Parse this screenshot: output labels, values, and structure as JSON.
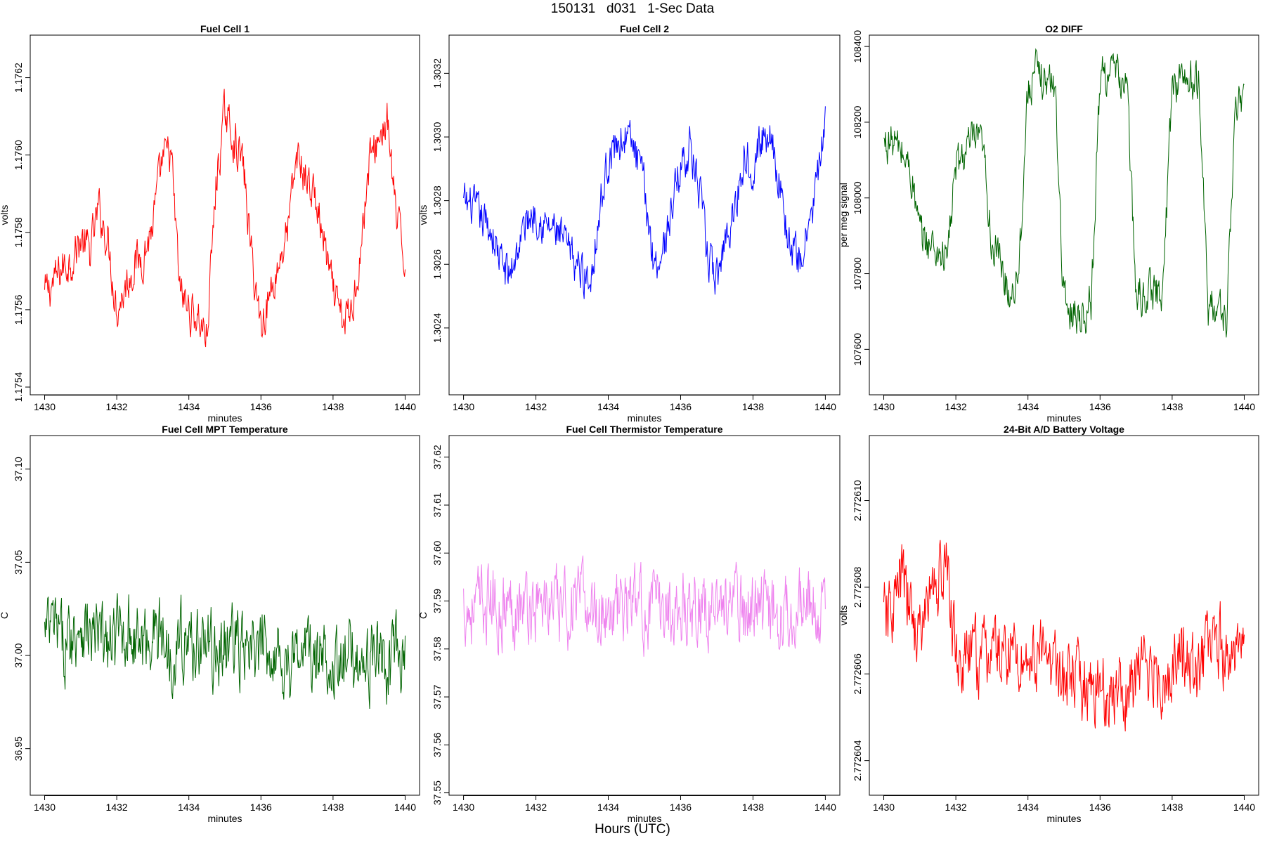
{
  "page": {
    "title": "150131   d031   1-Sec Data",
    "footer_xlabel": "Hours (UTC)"
  },
  "chart_data": [
    {
      "type": "line",
      "title": "Fuel Cell 1",
      "xlabel": "minutes",
      "ylabel": "volts",
      "color": "#ff0000",
      "xlim": [
        1429.6,
        1440.4
      ],
      "ylim": [
        1.17538,
        1.17631
      ],
      "xticks": [
        "1430",
        "1432",
        "1434",
        "1436",
        "1438",
        "1440"
      ],
      "yticks": [
        "1.1754",
        "1.1756",
        "1.1758",
        "1.1760",
        "1.1762"
      ],
      "series": [
        {
          "x": [
            1430,
            1430.25,
            1430.5,
            1430.75,
            1431,
            1431.25,
            1431.5,
            1431.75,
            1432,
            1432.25,
            1432.5,
            1432.75,
            1433,
            1433.25,
            1433.5,
            1433.75,
            1434,
            1434.25,
            1434.5,
            1434.75,
            1435,
            1435.25,
            1435.5,
            1435.75,
            1436,
            1436.25,
            1436.5,
            1436.75,
            1437,
            1437.25,
            1437.5,
            1437.75,
            1438,
            1438.25,
            1438.5,
            1438.75,
            1439,
            1439.25,
            1439.5,
            1439.75,
            1440
          ],
          "values": [
            1.17564,
            1.17567,
            1.17571,
            1.17573,
            1.17578,
            1.17575,
            1.17586,
            1.17578,
            1.1756,
            1.17566,
            1.17572,
            1.17574,
            1.17582,
            1.17598,
            1.17601,
            1.17565,
            1.1756,
            1.17558,
            1.17553,
            1.17592,
            1.17611,
            1.17604,
            1.17598,
            1.17573,
            1.17556,
            1.17564,
            1.17572,
            1.17581,
            1.176,
            1.17594,
            1.17589,
            1.17577,
            1.17564,
            1.17557,
            1.17559,
            1.17574,
            1.17598,
            1.17604,
            1.17609,
            1.17584,
            1.17572
          ]
        }
      ]
    },
    {
      "type": "line",
      "title": "Fuel Cell 2",
      "xlabel": "minutes",
      "ylabel": "volts",
      "color": "#0000ff",
      "xlim": [
        1429.6,
        1440.4
      ],
      "ylim": [
        1.30219,
        1.30332
      ],
      "xticks": [
        "1430",
        "1432",
        "1434",
        "1436",
        "1438",
        "1440"
      ],
      "yticks": [
        "1.3024",
        "1.3026",
        "1.3028",
        "1.3030",
        "1.3032"
      ],
      "series": [
        {
          "x": [
            1430,
            1430.25,
            1430.5,
            1430.75,
            1431,
            1431.25,
            1431.5,
            1431.75,
            1432,
            1432.25,
            1432.5,
            1432.75,
            1433,
            1433.25,
            1433.5,
            1433.75,
            1434,
            1434.25,
            1434.5,
            1434.75,
            1435,
            1435.25,
            1435.5,
            1435.75,
            1436,
            1436.25,
            1436.5,
            1436.75,
            1437,
            1437.25,
            1437.5,
            1437.75,
            1438,
            1438.25,
            1438.5,
            1438.75,
            1439,
            1439.25,
            1439.5,
            1439.75,
            1440
          ],
          "values": [
            1.30279,
            1.30278,
            1.30274,
            1.30271,
            1.30262,
            1.30256,
            1.30265,
            1.30274,
            1.30277,
            1.30272,
            1.30271,
            1.30267,
            1.30262,
            1.30258,
            1.30255,
            1.30276,
            1.30293,
            1.30298,
            1.30301,
            1.30295,
            1.30284,
            1.30261,
            1.30263,
            1.30278,
            1.30291,
            1.30297,
            1.30284,
            1.30262,
            1.30255,
            1.30269,
            1.30277,
            1.30294,
            1.30292,
            1.30299,
            1.30302,
            1.30284,
            1.30266,
            1.30261,
            1.30268,
            1.30285,
            1.30302
          ]
        }
      ]
    },
    {
      "type": "line",
      "title": "O2 DIFF",
      "xlabel": "minutes",
      "ylabel": "per meg signal",
      "color": "#006400",
      "xlim": [
        1429.6,
        1440.4
      ],
      "ylim": [
        107480,
        108430
      ],
      "xticks": [
        "1430",
        "1432",
        "1434",
        "1436",
        "1438",
        "1440"
      ],
      "yticks": [
        "107600",
        "107800",
        "108000",
        "108200",
        "108400"
      ],
      "series": [
        {
          "x": [
            1430,
            1430.25,
            1430.5,
            1430.75,
            1431,
            1431.25,
            1431.5,
            1431.75,
            1432,
            1432.25,
            1432.5,
            1432.75,
            1433,
            1433.25,
            1433.5,
            1433.75,
            1434,
            1434.25,
            1434.5,
            1434.75,
            1435,
            1435.25,
            1435.5,
            1435.75,
            1436,
            1436.25,
            1436.5,
            1436.75,
            1437,
            1437.25,
            1437.5,
            1437.75,
            1438,
            1438.25,
            1438.5,
            1438.75,
            1439,
            1439.25,
            1439.5,
            1439.75,
            1440
          ],
          "values": [
            108140,
            108150,
            108120,
            108070,
            107900,
            107880,
            107860,
            107840,
            108080,
            108120,
            108150,
            108130,
            107880,
            107820,
            107740,
            107820,
            108290,
            108330,
            108310,
            108300,
            107720,
            107700,
            107690,
            107720,
            108320,
            108340,
            108320,
            108300,
            107730,
            107750,
            107750,
            107760,
            108300,
            108320,
            108310,
            108290,
            107710,
            107710,
            107680,
            108200,
            108300
          ]
        }
      ]
    },
    {
      "type": "line",
      "title": "Fuel Cell MPT Temperature",
      "xlabel": "minutes",
      "ylabel": "C",
      "color": "#006400",
      "xlim": [
        1429.6,
        1440.4
      ],
      "ylim": [
        36.925,
        37.118
      ],
      "xticks": [
        "1430",
        "1432",
        "1434",
        "1436",
        "1438",
        "1440"
      ],
      "yticks": [
        "36.95",
        "37.00",
        "37.05",
        "37.10"
      ],
      "series": [
        {
          "x": [
            1430,
            1430.25,
            1430.5,
            1430.75,
            1431,
            1431.25,
            1431.5,
            1431.75,
            1432,
            1432.25,
            1432.5,
            1432.75,
            1433,
            1433.25,
            1433.5,
            1433.75,
            1434,
            1434.25,
            1434.5,
            1434.75,
            1435,
            1435.25,
            1435.5,
            1435.75,
            1436,
            1436.25,
            1436.5,
            1436.75,
            1437,
            1437.25,
            1437.5,
            1437.75,
            1438,
            1438.25,
            1438.5,
            1438.75,
            1439,
            1439.25,
            1439.5,
            1439.75,
            1440
          ],
          "values": [
            37.01,
            37.015,
            37.005,
            37.01,
            37.02,
            37.01,
            37.01,
            37.005,
            37.01,
            37.015,
            37.01,
            37.005,
            37.015,
            37.01,
            37.0,
            37.01,
            37.005,
            37.01,
            37.005,
            37.0,
            37.005,
            37.01,
            37.0,
            37.0,
            37.0,
            37.005,
            37.0,
            36.995,
            37.0,
            37.005,
            36.995,
            37.0,
            37.0,
            36.99,
            37.0,
            37.0,
            36.995,
            37.005,
            36.99,
            37.0,
            37.0
          ]
        }
      ]
    },
    {
      "type": "line",
      "title": "Fuel Cell Thermistor Temperature",
      "xlabel": "minutes",
      "ylabel": "C",
      "color": "#ee82ee",
      "xlim": [
        1429.6,
        1440.4
      ],
      "ylim": [
        37.5495,
        37.6245
      ],
      "xticks": [
        "1430",
        "1432",
        "1434",
        "1436",
        "1438",
        "1440"
      ],
      "yticks": [
        "37.55",
        "37.56",
        "37.57",
        "37.58",
        "37.59",
        "37.60",
        "37.61",
        "37.62"
      ],
      "series": [
        {
          "x": [
            1430,
            1430.25,
            1430.5,
            1430.75,
            1431,
            1431.25,
            1431.5,
            1431.75,
            1432,
            1432.25,
            1432.5,
            1432.75,
            1433,
            1433.25,
            1433.5,
            1433.75,
            1434,
            1434.25,
            1434.5,
            1434.75,
            1435,
            1435.25,
            1435.5,
            1435.75,
            1436,
            1436.25,
            1436.5,
            1436.75,
            1437,
            1437.25,
            1437.5,
            1437.75,
            1438,
            1438.25,
            1438.5,
            1438.75,
            1439,
            1439.25,
            1439.5,
            1439.75,
            1440
          ],
          "values": [
            37.589,
            37.588,
            37.589,
            37.59,
            37.588,
            37.589,
            37.59,
            37.589,
            37.588,
            37.59,
            37.589,
            37.588,
            37.589,
            37.59,
            37.589,
            37.588,
            37.589,
            37.588,
            37.589,
            37.59,
            37.588,
            37.589,
            37.588,
            37.589,
            37.588,
            37.59,
            37.589,
            37.588,
            37.589,
            37.59,
            37.589,
            37.588,
            37.589,
            37.59,
            37.589,
            37.588,
            37.589,
            37.59,
            37.589,
            37.588,
            37.586
          ]
        }
      ]
    },
    {
      "type": "line",
      "title": "24-Bit A/D Battery Voltage",
      "xlabel": "minutes",
      "ylabel": "volts",
      "color": "#ff0000",
      "xlim": [
        1429.6,
        1440.4
      ],
      "ylim": [
        2.7726032,
        2.7726115
      ],
      "xticks": [
        "1430",
        "1432",
        "1434",
        "1436",
        "1438",
        "1440"
      ],
      "yticks": [
        "2.772604",
        "2.772606",
        "2.772608",
        "2.772610"
      ],
      "series": [
        {
          "x": [
            1430,
            1430.25,
            1430.5,
            1430.75,
            1431,
            1431.25,
            1431.5,
            1431.75,
            1432,
            1432.25,
            1432.5,
            1432.75,
            1433,
            1433.25,
            1433.5,
            1433.75,
            1434,
            1434.25,
            1434.5,
            1434.75,
            1435,
            1435.25,
            1435.5,
            1435.75,
            1436,
            1436.25,
            1436.5,
            1436.75,
            1437,
            1437.25,
            1437.5,
            1437.75,
            1438,
            1438.25,
            1438.5,
            1438.75,
            1439,
            1439.25,
            1439.5,
            1439.75,
            1440
          ],
          "values": [
            2.7726072,
            2.7726075,
            2.7726082,
            2.7726074,
            2.7726068,
            2.7726078,
            2.7726082,
            2.7726084,
            2.7726064,
            2.7726062,
            2.7726065,
            2.7726063,
            2.7726066,
            2.7726064,
            2.7726066,
            2.7726064,
            2.7726063,
            2.7726065,
            2.7726062,
            2.7726064,
            2.7726057,
            2.7726059,
            2.7726056,
            2.7726058,
            2.7726057,
            2.7726055,
            2.7726057,
            2.7726055,
            2.7726059,
            2.7726061,
            2.7726062,
            2.7726058,
            2.7726061,
            2.7726064,
            2.7726059,
            2.7726063,
            2.7726064,
            2.7726067,
            2.7726065,
            2.7726064,
            2.7726062
          ]
        }
      ]
    }
  ]
}
